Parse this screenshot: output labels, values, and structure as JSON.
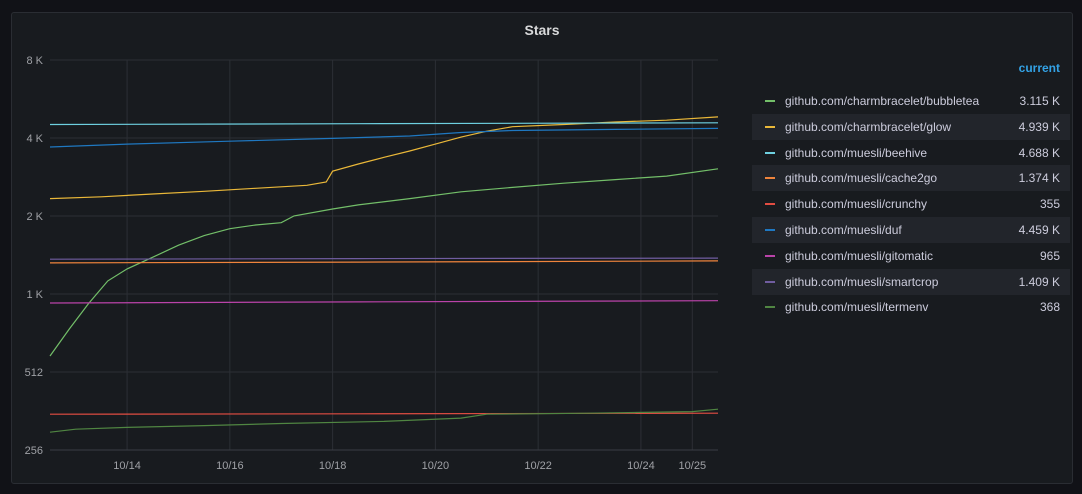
{
  "panel": {
    "title": "Stars"
  },
  "legend": {
    "header": "current",
    "items": [
      {
        "name": "github.com/charmbracelet/bubbletea",
        "value": "3.115 K",
        "color": "#73bf69"
      },
      {
        "name": "github.com/charmbracelet/glow",
        "value": "4.939 K",
        "color": "#eab839"
      },
      {
        "name": "github.com/muesli/beehive",
        "value": "4.688 K",
        "color": "#6ed0e0"
      },
      {
        "name": "github.com/muesli/cache2go",
        "value": "1.374 K",
        "color": "#ef843c"
      },
      {
        "name": "github.com/muesli/crunchy",
        "value": "355",
        "color": "#e24d42"
      },
      {
        "name": "github.com/muesli/duf",
        "value": "4.459 K",
        "color": "#1f78c1"
      },
      {
        "name": "github.com/muesli/gitomatic",
        "value": "965",
        "color": "#ba43a9"
      },
      {
        "name": "github.com/muesli/smartcrop",
        "value": "1.409 K",
        "color": "#705da0"
      },
      {
        "name": "github.com/muesli/termenv",
        "value": "368",
        "color": "#508642"
      }
    ]
  },
  "chart_data": {
    "type": "line",
    "title": "Stars",
    "y_scale": "log2",
    "ylim": [
      256,
      8192
    ],
    "y_ticks": [
      "256",
      "512",
      "1 K",
      "2 K",
      "4 K",
      "8 K"
    ],
    "x_ticks": [
      "10/14",
      "10/16",
      "10/18",
      "10/20",
      "10/22",
      "10/24",
      "10/25"
    ],
    "xlim": [
      "2020-10-12T12:00",
      "2020-10-25T12:00"
    ],
    "grid": true,
    "legend_position": "right",
    "series": [
      {
        "name": "github.com/charmbracelet/bubbletea",
        "color": "#73bf69",
        "points": [
          [
            "2020-10-12T12:00",
            590
          ],
          [
            "2020-10-12T21:00",
            750
          ],
          [
            "2020-10-13T06:00",
            940
          ],
          [
            "2020-10-13T15:00",
            1150
          ],
          [
            "2020-10-14T00:00",
            1280
          ],
          [
            "2020-10-14T12:00",
            1420
          ],
          [
            "2020-10-15T00:00",
            1580
          ],
          [
            "2020-10-15T12:00",
            1720
          ],
          [
            "2020-10-16T00:00",
            1830
          ],
          [
            "2020-10-16T12:00",
            1890
          ],
          [
            "2020-10-17T00:00",
            1930
          ],
          [
            "2020-10-17T06:00",
            2050
          ],
          [
            "2020-10-18T00:00",
            2180
          ],
          [
            "2020-10-18T12:00",
            2260
          ],
          [
            "2020-10-19T12:00",
            2390
          ],
          [
            "2020-10-20T12:00",
            2540
          ],
          [
            "2020-10-21T12:00",
            2640
          ],
          [
            "2020-10-22T12:00",
            2740
          ],
          [
            "2020-10-23T12:00",
            2830
          ],
          [
            "2020-10-24T12:00",
            2920
          ],
          [
            "2020-10-25T12:00",
            3115
          ]
        ]
      },
      {
        "name": "github.com/charmbracelet/glow",
        "color": "#eab839",
        "points": [
          [
            "2020-10-12T12:00",
            2390
          ],
          [
            "2020-10-13T12:00",
            2430
          ],
          [
            "2020-10-14T12:00",
            2490
          ],
          [
            "2020-10-15T12:00",
            2550
          ],
          [
            "2020-10-16T12:00",
            2620
          ],
          [
            "2020-10-17T12:00",
            2690
          ],
          [
            "2020-10-17T21:00",
            2770
          ],
          [
            "2020-10-18T00:00",
            3050
          ],
          [
            "2020-10-18T12:00",
            3250
          ],
          [
            "2020-10-19T00:00",
            3450
          ],
          [
            "2020-10-19T12:00",
            3650
          ],
          [
            "2020-10-20T00:00",
            3880
          ],
          [
            "2020-10-20T12:00",
            4130
          ],
          [
            "2020-10-21T00:00",
            4350
          ],
          [
            "2020-10-21T12:00",
            4530
          ],
          [
            "2020-10-22T12:00",
            4620
          ],
          [
            "2020-10-23T12:00",
            4720
          ],
          [
            "2020-10-24T12:00",
            4800
          ],
          [
            "2020-10-25T12:00",
            4939
          ]
        ]
      },
      {
        "name": "github.com/muesli/beehive",
        "color": "#6ed0e0",
        "points": [
          [
            "2020-10-12T12:00",
            4620
          ],
          [
            "2020-10-18T12:00",
            4650
          ],
          [
            "2020-10-25T12:00",
            4688
          ]
        ]
      },
      {
        "name": "github.com/muesli/cache2go",
        "color": "#ef843c",
        "points": [
          [
            "2020-10-12T12:00",
            1350
          ],
          [
            "2020-10-18T12:00",
            1360
          ],
          [
            "2020-10-25T12:00",
            1374
          ]
        ]
      },
      {
        "name": "github.com/muesli/crunchy",
        "color": "#e24d42",
        "points": [
          [
            "2020-10-12T12:00",
            352
          ],
          [
            "2020-10-18T12:00",
            353
          ],
          [
            "2020-10-25T12:00",
            355
          ]
        ]
      },
      {
        "name": "github.com/muesli/duf",
        "color": "#1f78c1",
        "points": [
          [
            "2020-10-12T12:00",
            3780
          ],
          [
            "2020-10-14T00:00",
            3880
          ],
          [
            "2020-10-16T00:00",
            3980
          ],
          [
            "2020-10-18T00:00",
            4080
          ],
          [
            "2020-10-19T12:00",
            4170
          ],
          [
            "2020-10-20T12:00",
            4300
          ],
          [
            "2020-10-21T12:00",
            4380
          ],
          [
            "2020-10-23T12:00",
            4420
          ],
          [
            "2020-10-25T12:00",
            4459
          ]
        ]
      },
      {
        "name": "github.com/muesli/gitomatic",
        "color": "#ba43a9",
        "points": [
          [
            "2020-10-12T12:00",
            945
          ],
          [
            "2020-10-18T12:00",
            955
          ],
          [
            "2020-10-25T12:00",
            965
          ]
        ]
      },
      {
        "name": "github.com/muesli/smartcrop",
        "color": "#705da0",
        "points": [
          [
            "2020-10-12T12:00",
            1395
          ],
          [
            "2020-10-18T12:00",
            1402
          ],
          [
            "2020-10-25T12:00",
            1409
          ]
        ]
      },
      {
        "name": "github.com/muesli/termenv",
        "color": "#508642",
        "points": [
          [
            "2020-10-12T12:00",
            300
          ],
          [
            "2020-10-13T00:00",
            308
          ],
          [
            "2020-10-14T00:00",
            313
          ],
          [
            "2020-10-15T12:00",
            318
          ],
          [
            "2020-10-17T00:00",
            324
          ],
          [
            "2020-10-19T00:00",
            330
          ],
          [
            "2020-10-20T12:00",
            340
          ],
          [
            "2020-10-21T00:00",
            352
          ],
          [
            "2020-10-23T00:00",
            355
          ],
          [
            "2020-10-25T00:00",
            360
          ],
          [
            "2020-10-25T12:00",
            368
          ]
        ]
      }
    ]
  }
}
